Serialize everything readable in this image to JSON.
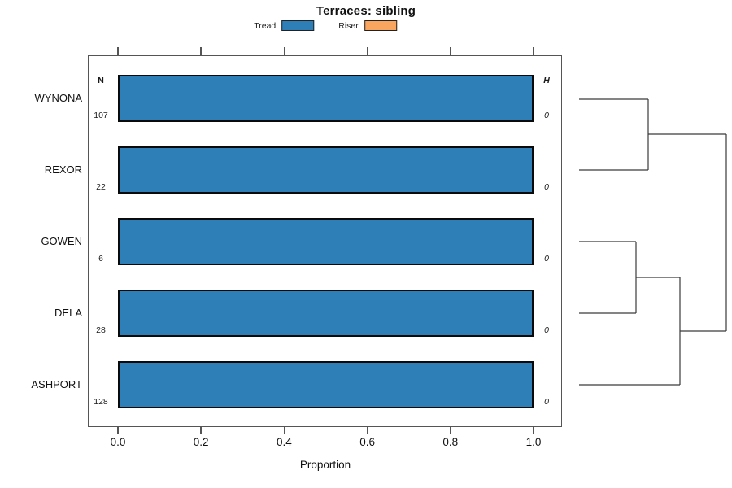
{
  "title": "Terraces: sibling",
  "legend": [
    {
      "label": "Tread",
      "color": "#2e7eb8"
    },
    {
      "label": "Riser",
      "color": "#f9a45f"
    }
  ],
  "axis": {
    "xlabel": "Proportion",
    "ticks": [
      "0.0",
      "0.2",
      "0.4",
      "0.6",
      "0.8",
      "1.0"
    ],
    "tick_values": [
      0.0,
      0.2,
      0.4,
      0.6,
      0.8,
      1.0
    ]
  },
  "columns": {
    "n_header": "N",
    "h_header": "H"
  },
  "rows": [
    {
      "label": "WYNONA",
      "n": "107",
      "h": "0",
      "tread": 1.0,
      "riser": 0.0
    },
    {
      "label": "REXOR",
      "n": "22",
      "h": "0",
      "tread": 1.0,
      "riser": 0.0
    },
    {
      "label": "GOWEN",
      "n": "6",
      "h": "0",
      "tread": 1.0,
      "riser": 0.0
    },
    {
      "label": "DELA",
      "n": "28",
      "h": "0",
      "tread": 1.0,
      "riser": 0.0
    },
    {
      "label": "ASHPORT",
      "n": "128",
      "h": "0",
      "tread": 1.0,
      "riser": 0.0
    }
  ],
  "chart_data": {
    "type": "bar",
    "orientation": "horizontal",
    "title": "Terraces: sibling",
    "xlabel": "Proportion",
    "xlim": [
      0,
      1
    ],
    "grid": false,
    "legend_position": "top",
    "categories": [
      "WYNONA",
      "REXOR",
      "GOWEN",
      "DELA",
      "ASHPORT"
    ],
    "series": [
      {
        "name": "Tread",
        "color": "#2e7eb8",
        "values": [
          1.0,
          1.0,
          1.0,
          1.0,
          1.0
        ]
      },
      {
        "name": "Riser",
        "color": "#f9a45f",
        "values": [
          0.0,
          0.0,
          0.0,
          0.0,
          0.0
        ]
      }
    ],
    "annotations": {
      "N": [
        107,
        22,
        6,
        28,
        128
      ],
      "H": [
        0,
        0,
        0,
        0,
        0
      ]
    },
    "dendrogram": {
      "structure": "((WYNONA,REXOR),((GOWEN,DELA),ASHPORT))",
      "segments": [
        [
          12,
          62,
          97,
          62
        ],
        [
          12,
          149,
          97,
          149
        ],
        [
          97,
          62,
          97,
          149
        ],
        [
          97,
          105,
          193,
          105
        ],
        [
          12,
          237,
          82,
          237
        ],
        [
          12,
          325,
          82,
          325
        ],
        [
          82,
          237,
          82,
          325
        ],
        [
          82,
          281,
          136,
          281
        ],
        [
          12,
          413,
          136,
          413
        ],
        [
          136,
          281,
          136,
          413
        ],
        [
          136,
          347,
          193,
          347
        ],
        [
          193,
          105,
          193,
          347
        ]
      ]
    }
  }
}
